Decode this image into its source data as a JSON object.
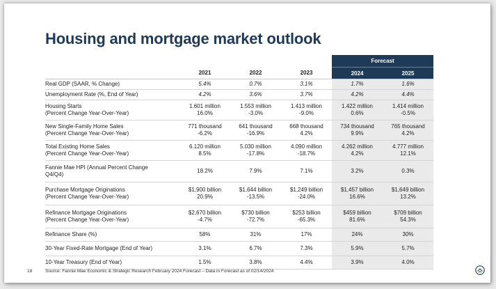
{
  "title": "Housing and mortgage market outlook",
  "forecast_label": "Forecast",
  "years": [
    "2021",
    "2022",
    "2023",
    "2024",
    "2025"
  ],
  "rows": [
    {
      "label": [
        "Real GDP (SAAR, % Change)"
      ],
      "values": [
        [
          "5.4%"
        ],
        [
          "0.7%"
        ],
        [
          "3.1%"
        ],
        [
          "1.7%"
        ],
        [
          "1.6%"
        ]
      ],
      "italic": true
    },
    {
      "label": [
        "Unemployment Rate (%, End of Year)"
      ],
      "values": [
        [
          "4.2%"
        ],
        [
          "3.6%"
        ],
        [
          "3.7%"
        ],
        [
          "4.2%"
        ],
        [
          "4.4%"
        ]
      ],
      "italic": true
    },
    {
      "label": [
        "Housing Starts",
        "(Percent Change Year-Over-Year)"
      ],
      "values": [
        [
          "1.601 million",
          "16.0%"
        ],
        [
          "1.553 million",
          "-3.0%"
        ],
        [
          "1.413 million",
          "-9.0%"
        ],
        [
          "1.422 million",
          "0.6%"
        ],
        [
          "1.414 million",
          "-0.5%"
        ]
      ]
    },
    {
      "label": [
        "New Single-Family Home Sales",
        "(Percent Change Year-Over-Year)"
      ],
      "values": [
        [
          "771 thousand",
          "-6.2%"
        ],
        [
          "641 thousand",
          "-16.9%"
        ],
        [
          "668 thousand",
          "4.2%"
        ],
        [
          "734 thousand",
          "9.9%"
        ],
        [
          "765 thousand",
          "4.2%"
        ]
      ]
    },
    {
      "label": [
        "Total Existing Home Sales",
        "(Percent Change Year-Over-Year)"
      ],
      "values": [
        [
          "6.120 million",
          "8.5%"
        ],
        [
          "5.030 million",
          "-17.8%"
        ],
        [
          "4.090 million",
          "-18.7%"
        ],
        [
          "4.262 million",
          "4.2%"
        ],
        [
          "4.777 million",
          "12.1%"
        ]
      ]
    },
    {
      "label": [
        "Fannie Mae HPI (Annual Percent Change",
        "Q4/Q4)"
      ],
      "values": [
        [
          "18.2%"
        ],
        [
          "7.9%"
        ],
        [
          "7.1%"
        ],
        [
          "3.2%"
        ],
        [
          "0.3%"
        ]
      ]
    },
    {
      "label": [
        "Purchase Mortgage Originations",
        "(Percent Change Year-Over-Year)"
      ],
      "values": [
        [
          "$1,900 billion",
          "20.9%"
        ],
        [
          "$1,644 billion",
          "-13.5%"
        ],
        [
          "$1,249 billion",
          "-24.0%"
        ],
        [
          "$1,457 billion",
          "16.6%"
        ],
        [
          "$1,649 billion",
          "13.2%"
        ]
      ]
    },
    {
      "label": [
        "Refinance Mortgage Originations",
        "(Percent Change Year-Over-Year)"
      ],
      "values": [
        [
          "$2,670 billion",
          "-4.7%"
        ],
        [
          "$730 billion",
          "-72.7%"
        ],
        [
          "$253 billion",
          "-65.3%"
        ],
        [
          "$459 billion",
          "81.6%"
        ],
        [
          "$709 billion",
          "54.3%"
        ]
      ]
    },
    {
      "label": [
        "Refinance Share (%)"
      ],
      "values": [
        [
          "58%"
        ],
        [
          "31%"
        ],
        [
          "17%"
        ],
        [
          "24%"
        ],
        [
          "30%"
        ]
      ]
    },
    {
      "label": [
        "30-Year Fixed-Rate Mortgage (End of Year)"
      ],
      "values": [
        [
          "3.1%"
        ],
        [
          "6.7%"
        ],
        [
          "7.3%"
        ],
        [
          "5.9%"
        ],
        [
          "5.7%"
        ]
      ]
    },
    {
      "label": [
        "10-Year Treasury (End of Year)"
      ],
      "values": [
        [
          "1.5%"
        ],
        [
          "3.8%"
        ],
        [
          "4.4%"
        ],
        [
          "3.9%"
        ],
        [
          "4.0%"
        ]
      ]
    }
  ],
  "page_number": "18",
  "source": "Source: Fannie Mae Economic & Strategic Research February 2024 Forecast – Data in Forecast as of 02/14/2024",
  "logo_icon": "fannie-mae-logo-icon",
  "colors": {
    "header_navy": "#1f3a57",
    "title": "#1f3a57",
    "shade": "#eaeaea"
  }
}
